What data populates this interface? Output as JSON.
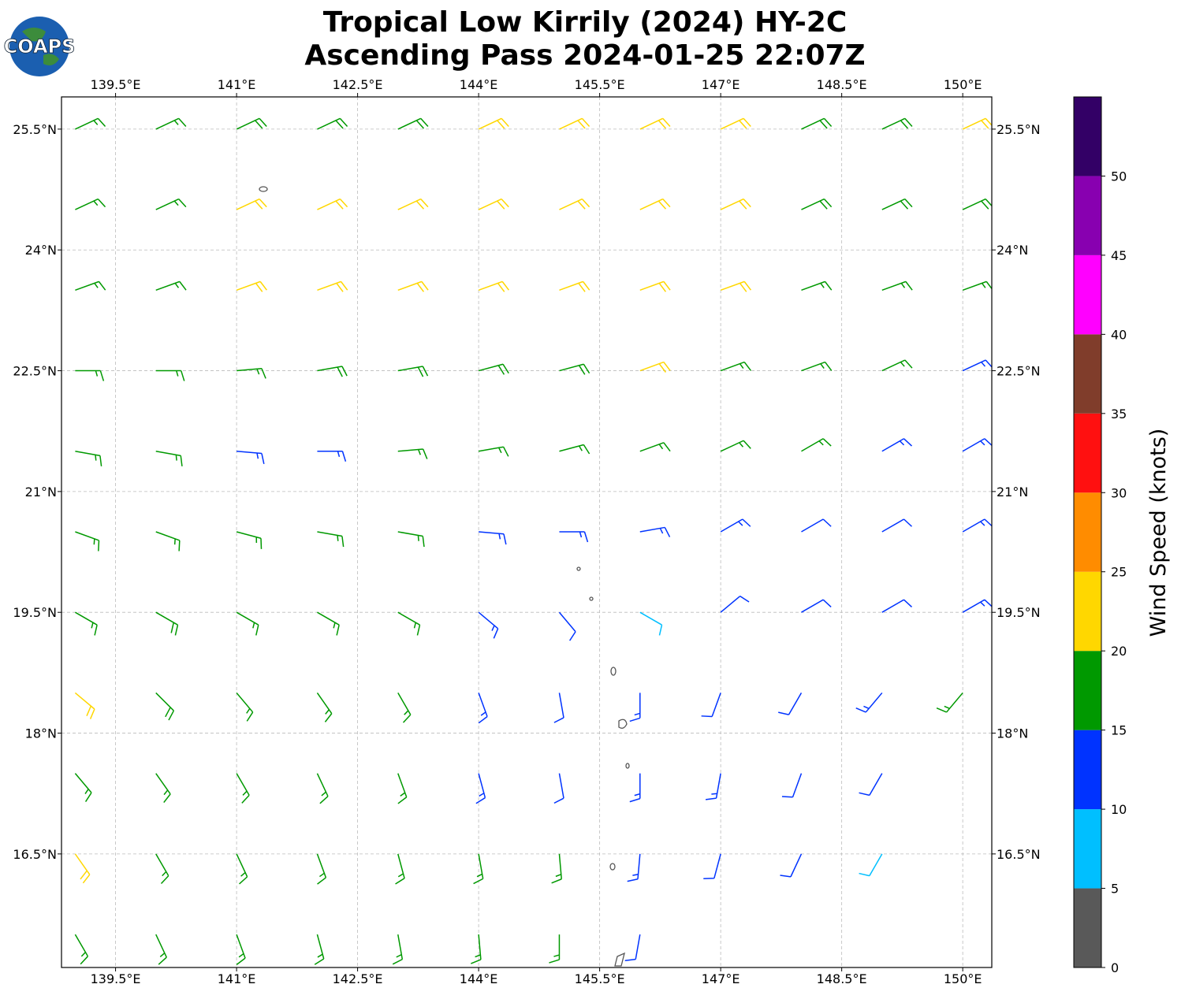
{
  "map": {
    "title": [
      "Tropical Low Kirrily (2024) HY-2C",
      "Ascending Pass 2024-01-25 22:07Z"
    ],
    "logo": "COAPS",
    "lonlim": [
      138.83,
      150.36
    ],
    "latlim": [
      15.09,
      25.9
    ],
    "lonticks": [
      {
        "value": 139.5,
        "label": "139.5°E"
      },
      {
        "value": 141,
        "label": "141°E"
      },
      {
        "value": 142.5,
        "label": "142.5°E"
      },
      {
        "value": 144,
        "label": "144°E"
      },
      {
        "value": 145.5,
        "label": "145.5°E"
      },
      {
        "value": 147,
        "label": "147°E"
      },
      {
        "value": 148.5,
        "label": "148.5°E"
      },
      {
        "value": 150,
        "label": "150°E"
      }
    ],
    "latticks": [
      {
        "value": 16.5,
        "label": "16.5°N"
      },
      {
        "value": 18,
        "label": "18°N"
      },
      {
        "value": 19.5,
        "label": "19.5°N"
      },
      {
        "value": 21,
        "label": "21°N"
      },
      {
        "value": 22.5,
        "label": "22.5°N"
      },
      {
        "value": 24,
        "label": "24°N"
      },
      {
        "value": 25.5,
        "label": "25.5°N"
      }
    ],
    "grid": true,
    "barbs": {
      "lons": [
        139,
        140,
        141,
        142,
        143,
        144,
        145,
        146,
        147,
        148,
        149,
        150
      ],
      "lats": [
        25.5,
        24.5,
        23.5,
        22.5,
        21.5,
        20.5,
        19.5,
        18.5,
        17.5,
        16.5,
        15.5
      ],
      "speed": [
        [
          17,
          17,
          18,
          18,
          18,
          22,
          22,
          22,
          22,
          18,
          18,
          22
        ],
        [
          17,
          17,
          22,
          22,
          22,
          21,
          22,
          22,
          22,
          18,
          18,
          18
        ],
        [
          17,
          17,
          21,
          22,
          22,
          21,
          22,
          22,
          22,
          17,
          17,
          17
        ],
        [
          17,
          16,
          17,
          18,
          18,
          18,
          19,
          21,
          17,
          16,
          16,
          14
        ],
        [
          17,
          16,
          13,
          14,
          16,
          17,
          17,
          17,
          16,
          16,
          13,
          13
        ],
        [
          17,
          17,
          17,
          17,
          16,
          14,
          13,
          13,
          13,
          12,
          12,
          13
        ],
        [
          17,
          18,
          17,
          17,
          16,
          13,
          12,
          8,
          12,
          12,
          12,
          13
        ],
        [
          22,
          19,
          17,
          17,
          16,
          13,
          12,
          14,
          12,
          12,
          13,
          16
        ],
        [
          17,
          17,
          17,
          16,
          16,
          13,
          12,
          13,
          14,
          12,
          12,
          null
        ],
        [
          21,
          17,
          17,
          17,
          16,
          16,
          16,
          13,
          12,
          11,
          9,
          null
        ],
        [
          17,
          17,
          17,
          17,
          17,
          16,
          16,
          12,
          null,
          null,
          null,
          null
        ]
      ],
      "dir": [
        [
          65,
          65,
          65,
          65,
          65,
          65,
          65,
          65,
          65,
          65,
          65,
          65
        ],
        [
          65,
          65,
          65,
          65,
          65,
          65,
          65,
          65,
          65,
          65,
          65,
          65
        ],
        [
          70,
          70,
          70,
          70,
          70,
          70,
          70,
          70,
          70,
          70,
          70,
          70
        ],
        [
          90,
          90,
          85,
          80,
          80,
          75,
          75,
          70,
          70,
          70,
          65,
          65
        ],
        [
          100,
          100,
          95,
          90,
          85,
          80,
          75,
          70,
          65,
          60,
          60,
          60
        ],
        [
          110,
          110,
          105,
          100,
          100,
          95,
          90,
          80,
          60,
          60,
          60,
          60
        ],
        [
          120,
          120,
          120,
          120,
          120,
          130,
          140,
          120,
          50,
          60,
          60,
          60
        ],
        [
          130,
          135,
          140,
          145,
          150,
          160,
          170,
          180,
          200,
          210,
          220,
          220
        ],
        [
          140,
          145,
          150,
          155,
          160,
          165,
          170,
          180,
          190,
          200,
          210,
          null
        ],
        [
          145,
          150,
          155,
          160,
          165,
          170,
          175,
          185,
          195,
          205,
          210,
          null
        ],
        [
          150,
          155,
          160,
          165,
          170,
          175,
          180,
          190,
          null,
          null,
          null,
          null
        ]
      ]
    },
    "colorbar": {
      "label": "Wind Speed (knots)",
      "bounds": [
        0,
        5,
        10,
        15,
        20,
        25,
        30,
        35,
        40,
        45,
        50,
        55
      ],
      "colors": [
        "#595959",
        "#00bfff",
        "#0033ff",
        "#009900",
        "#ffd700",
        "#ff8c00",
        "#ff1010",
        "#803d2b",
        "#ff00ff",
        "#8800b0",
        "#330066"
      ],
      "ticks": [
        0,
        5,
        10,
        15,
        20,
        25,
        30,
        35,
        40,
        45,
        50
      ]
    }
  }
}
